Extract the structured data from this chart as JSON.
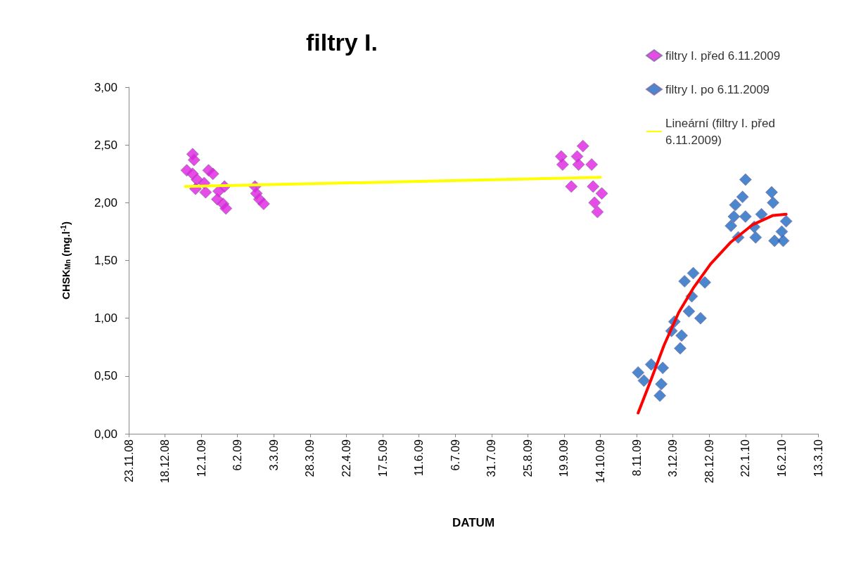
{
  "chart_data": {
    "type": "scatter",
    "title": "filtry I.",
    "xlabel": "DATUM",
    "ylabel": "CHSK$_{Mn}$ (mg.l$^{-1}$)",
    "xlim": [
      "2008-11-23",
      "2010-03-13"
    ],
    "xticks": [
      {
        "value": "2008-11-23",
        "label": "23.11.08"
      },
      {
        "value": "2008-12-18",
        "label": "18.12.08"
      },
      {
        "value": "2009-01-12",
        "label": "12.1.09"
      },
      {
        "value": "2009-02-06",
        "label": "6.2.09"
      },
      {
        "value": "2009-03-03",
        "label": "3.3.09"
      },
      {
        "value": "2009-03-28",
        "label": "28.3.09"
      },
      {
        "value": "2009-04-22",
        "label": "22.4.09"
      },
      {
        "value": "2009-05-17",
        "label": "17.5.09"
      },
      {
        "value": "2009-06-11",
        "label": "11.6.09"
      },
      {
        "value": "2009-07-06",
        "label": "6.7.09"
      },
      {
        "value": "2009-07-31",
        "label": "31.7.09"
      },
      {
        "value": "2009-08-25",
        "label": "25.8.09"
      },
      {
        "value": "2009-09-19",
        "label": "19.9.09"
      },
      {
        "value": "2009-10-14",
        "label": "14.10.09"
      },
      {
        "value": "2009-11-08",
        "label": "8.11.09"
      },
      {
        "value": "2009-12-03",
        "label": "3.12.09"
      },
      {
        "value": "2009-12-28",
        "label": "28.12.09"
      },
      {
        "value": "2010-01-22",
        "label": "22.1.10"
      },
      {
        "value": "2010-02-16",
        "label": "16.2.10"
      },
      {
        "value": "2010-03-13",
        "label": "13.3.10"
      }
    ],
    "ylim": [
      0,
      3
    ],
    "yticks": [
      {
        "value": 0,
        "label": "0,00"
      },
      {
        "value": 0.5,
        "label": "0,50"
      },
      {
        "value": 1,
        "label": "1,00"
      },
      {
        "value": 1.5,
        "label": "1,50"
      },
      {
        "value": 2,
        "label": "2,00"
      },
      {
        "value": 2.5,
        "label": "2,50"
      },
      {
        "value": 3,
        "label": "3,00"
      }
    ],
    "grid": false,
    "legend": "top right",
    "marker": "diamond",
    "series": [
      {
        "name": "filtry I. před 6.11.2009",
        "color": "#e020e0",
        "x": [
          "2009-01-02",
          "2009-01-06",
          "2009-01-07",
          "2009-01-06",
          "2009-01-08",
          "2009-01-09",
          "2009-01-14",
          "2009-01-15",
          "2009-01-17",
          "2009-01-20",
          "2009-01-23",
          "2009-01-24",
          "2009-01-28",
          "2009-01-27",
          "2009-01-29",
          "2009-02-18",
          "2009-02-19",
          "2009-02-21",
          "2009-02-24",
          "2009-09-17",
          "2009-09-24",
          "2009-09-28",
          "2009-09-18",
          "2009-09-29",
          "2009-10-02",
          "2009-10-08",
          "2009-10-09",
          "2009-10-15",
          "2009-10-10",
          "2009-10-12"
        ],
        "values": [
          2.28,
          2.42,
          2.37,
          2.25,
          2.12,
          2.2,
          2.17,
          2.09,
          2.28,
          2.25,
          2.03,
          2.1,
          2.14,
          1.99,
          1.95,
          2.14,
          2.08,
          2.03,
          1.99,
          2.4,
          2.14,
          2.4,
          2.33,
          2.33,
          2.49,
          2.33,
          2.14,
          2.08,
          2.0,
          1.92
        ]
      },
      {
        "name": "filtry I. po 6.11.2009",
        "color": "#1f69c1",
        "x": [
          "2009-11-09",
          "2009-11-13",
          "2009-11-18",
          "2009-11-24",
          "2009-11-25",
          "2009-11-26",
          "2009-12-02",
          "2009-12-04",
          "2009-12-08",
          "2009-12-09",
          "2009-12-11",
          "2009-12-14",
          "2009-12-16",
          "2009-12-17",
          "2009-12-22",
          "2009-12-25",
          "2010-01-12",
          "2010-01-14",
          "2010-01-15",
          "2010-01-17",
          "2010-01-20",
          "2010-01-22",
          "2010-01-22",
          "2010-01-28",
          "2010-01-29",
          "2010-02-02",
          "2010-02-09",
          "2010-02-10",
          "2010-02-11",
          "2010-02-16",
          "2010-02-17",
          "2010-02-19"
        ],
        "values": [
          0.53,
          0.46,
          0.6,
          0.33,
          0.43,
          0.57,
          0.89,
          0.97,
          0.74,
          0.85,
          1.32,
          1.06,
          1.19,
          1.39,
          1.0,
          1.31,
          1.8,
          1.88,
          1.98,
          1.7,
          2.05,
          2.2,
          1.88,
          1.79,
          1.7,
          1.9,
          2.09,
          2.0,
          1.67,
          1.75,
          1.67,
          1.84
        ]
      },
      {
        "name": "Lineární (filtry I. před 6.11.2009)",
        "color": "#ffff00",
        "type": "line",
        "marker": "none",
        "x": [
          "2009-01-01",
          "2009-10-14"
        ],
        "values": [
          2.14,
          2.22
        ]
      },
      {
        "color": "#ff0000",
        "type": "line",
        "marker": "none",
        "x": [
          "2009-11-09",
          "2009-11-18",
          "2009-11-27",
          "2009-12-07",
          "2009-12-17",
          "2009-12-29",
          "2010-01-12",
          "2010-01-27",
          "2010-02-10",
          "2010-02-19"
        ],
        "values": [
          0.18,
          0.47,
          0.77,
          1.05,
          1.26,
          1.47,
          1.66,
          1.81,
          1.89,
          1.9
        ]
      }
    ]
  }
}
